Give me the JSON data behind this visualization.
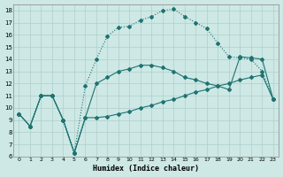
{
  "xlabel": "Humidex (Indice chaleur)",
  "xlim": [
    -0.5,
    23.5
  ],
  "ylim": [
    6,
    18.5
  ],
  "yticks": [
    6,
    7,
    8,
    9,
    10,
    11,
    12,
    13,
    14,
    15,
    16,
    17,
    18
  ],
  "xticks": [
    0,
    1,
    2,
    3,
    4,
    5,
    6,
    7,
    8,
    9,
    10,
    11,
    12,
    13,
    14,
    15,
    16,
    17,
    18,
    19,
    20,
    21,
    22,
    23
  ],
  "bg_color": "#cde8e5",
  "grid_color": "#aecfcc",
  "line_color": "#1e7370",
  "line1_x": [
    0,
    1,
    2,
    3,
    4,
    5,
    6,
    7,
    8,
    9,
    10,
    11,
    12,
    13,
    14,
    15,
    16,
    17,
    18,
    19,
    20,
    21,
    22,
    23
  ],
  "line1_y": [
    9.5,
    8.5,
    11.0,
    11.0,
    9.0,
    6.3,
    9.2,
    9.2,
    9.3,
    9.5,
    9.7,
    10.0,
    10.2,
    10.5,
    10.7,
    11.0,
    11.3,
    11.5,
    11.8,
    12.0,
    12.3,
    12.5,
    12.7,
    10.7
  ],
  "line1_style": "solid",
  "line2_x": [
    0,
    1,
    2,
    3,
    4,
    5,
    6,
    7,
    8,
    9,
    10,
    11,
    12,
    13,
    14,
    15,
    16,
    17,
    18,
    19,
    20,
    21,
    22,
    23
  ],
  "line2_y": [
    9.5,
    8.5,
    11.0,
    11.0,
    9.0,
    6.3,
    11.8,
    14.0,
    15.9,
    16.6,
    16.7,
    17.2,
    17.5,
    18.0,
    18.1,
    17.5,
    17.0,
    16.5,
    15.3,
    14.2,
    14.1,
    14.0,
    13.0,
    10.7
  ],
  "line2_style": "dotted",
  "line3_x": [
    0,
    1,
    2,
    3,
    4,
    5,
    6,
    7,
    8,
    9,
    10,
    11,
    12,
    13,
    14,
    15,
    16,
    17,
    18,
    19,
    20,
    21,
    22,
    23
  ],
  "line3_y": [
    9.5,
    8.5,
    11.0,
    11.0,
    9.0,
    6.3,
    9.2,
    12.0,
    12.5,
    13.0,
    13.2,
    13.5,
    13.5,
    13.3,
    13.0,
    12.5,
    12.3,
    12.0,
    11.8,
    11.5,
    14.2,
    14.1,
    14.0,
    10.7
  ],
  "line3_style": "solid",
  "markersize": 2.0,
  "linewidth": 0.8
}
